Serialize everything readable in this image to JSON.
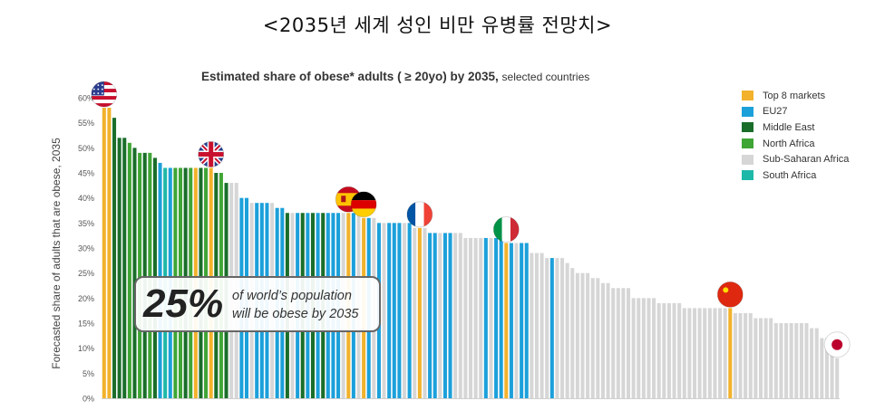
{
  "page_title": "<2035년 세계 성인 비만 유병률 전망치>",
  "colors": {
    "Top 8 markets": "#F2B22C",
    "EU27": "#1CA0DA",
    "Middle East": "#1A6E2A",
    "North Africa": "#3FA535",
    "Sub-Saharan Africa": "#D6D6D6",
    "South Africa": "#1DB8A8"
  },
  "callout": {
    "percent": "25%",
    "line1": "of world’s population",
    "line2": "will be obese by 2035"
  },
  "chart_data": {
    "type": "bar",
    "title": "Estimated share of obese* adults ( ≥ 20yo) by 2035,",
    "subtitle": "selected countries",
    "ylabel": "Forecasted share of adults that are obese, 2035",
    "xlabel": "",
    "ylim": [
      0,
      60
    ],
    "yticks": [
      "0%",
      "5%",
      "10%",
      "15%",
      "20%",
      "25%",
      "30%",
      "35%",
      "40%",
      "45%",
      "50%",
      "55%",
      "60%"
    ],
    "grid": false,
    "legend_position": "top-right",
    "legend": [
      "Top 8 markets",
      "EU27",
      "Middle East",
      "North Africa",
      "Sub-Saharan Africa",
      "South Africa"
    ],
    "flags": [
      {
        "country": "United States",
        "flag": "us-flag-icon",
        "bar_index": 0
      },
      {
        "country": "United Kingdom",
        "flag": "uk-flag-icon",
        "bar_index": 21
      },
      {
        "country": "Spain",
        "flag": "spain-flag-icon",
        "bar_index": 48
      },
      {
        "country": "Germany",
        "flag": "germany-flag-icon",
        "bar_index": 51
      },
      {
        "country": "France",
        "flag": "france-flag-icon",
        "bar_index": 62
      },
      {
        "country": "Italy",
        "flag": "italy-flag-icon",
        "bar_index": 79
      },
      {
        "country": "China",
        "flag": "china-flag-icon",
        "bar_index": 123
      },
      {
        "country": "Japan",
        "flag": "japan-flag-icon",
        "bar_index": 144
      }
    ],
    "values": [
      58,
      58,
      56,
      52,
      52,
      51,
      50,
      49,
      49,
      49,
      48,
      47,
      46,
      46,
      46,
      46,
      46,
      46,
      46,
      46,
      46,
      46,
      45,
      45,
      43,
      43,
      43,
      40,
      40,
      39,
      39,
      39,
      39,
      39,
      38,
      38,
      37,
      37,
      37,
      37,
      37,
      37,
      37,
      37,
      37,
      37,
      37,
      37,
      37,
      37,
      37,
      36,
      36,
      36,
      35,
      35,
      35,
      35,
      35,
      35,
      35,
      34,
      34,
      34,
      33,
      33,
      33,
      33,
      33,
      33,
      33,
      32,
      32,
      32,
      32,
      32,
      32,
      32,
      32,
      31,
      31,
      31,
      31,
      31,
      29,
      29,
      29,
      28,
      28,
      28,
      28,
      27,
      26,
      25,
      25,
      25,
      24,
      24,
      23,
      23,
      22,
      22,
      22,
      22,
      20,
      20,
      20,
      20,
      20,
      19,
      19,
      19,
      19,
      19,
      18,
      18,
      18,
      18,
      18,
      18,
      18,
      18,
      18,
      18,
      17,
      17,
      17,
      17,
      16,
      16,
      16,
      16,
      15,
      15,
      15,
      15,
      15,
      15,
      15,
      14,
      14,
      12,
      12,
      12,
      8
    ],
    "groups": [
      "Top 8 markets",
      "Top 8 markets",
      "Middle East",
      "Middle East",
      "Middle East",
      "North Africa",
      "Middle East",
      "North Africa",
      "Middle East",
      "North Africa",
      "Middle East",
      "EU27",
      "South Africa",
      "EU27",
      "North Africa",
      "North Africa",
      "Middle East",
      "North Africa",
      "Top 8 markets",
      "Middle East",
      "North Africa",
      "Top 8 markets",
      "Middle East",
      "North Africa",
      "Middle East",
      "Sub-Saharan Africa",
      "Sub-Saharan Africa",
      "EU27",
      "EU27",
      "Sub-Saharan Africa",
      "EU27",
      "EU27",
      "EU27",
      "Sub-Saharan Africa",
      "EU27",
      "EU27",
      "Middle East",
      "Sub-Saharan Africa",
      "EU27",
      "Middle East",
      "EU27",
      "Middle East",
      "EU27",
      "Middle East",
      "EU27",
      "EU27",
      "EU27",
      "Sub-Saharan Africa",
      "Top 8 markets",
      "EU27",
      "Sub-Saharan Africa",
      "Top 8 markets",
      "EU27",
      "Sub-Saharan Africa",
      "EU27",
      "Sub-Saharan Africa",
      "EU27",
      "EU27",
      "EU27",
      "Sub-Saharan Africa",
      "EU27",
      "Sub-Saharan Africa",
      "Top 8 markets",
      "Sub-Saharan Africa",
      "EU27",
      "EU27",
      "Sub-Saharan Africa",
      "EU27",
      "EU27",
      "Sub-Saharan Africa",
      "Sub-Saharan Africa",
      "Sub-Saharan Africa",
      "Sub-Saharan Africa",
      "Sub-Saharan Africa",
      "Sub-Saharan Africa",
      "EU27",
      "Sub-Saharan Africa",
      "EU27",
      "EU27",
      "Top 8 markets",
      "EU27",
      "Sub-Saharan Africa",
      "EU27",
      "EU27",
      "Sub-Saharan Africa",
      "Sub-Saharan Africa",
      "Sub-Saharan Africa",
      "Sub-Saharan Africa",
      "EU27",
      "Sub-Saharan Africa",
      "Sub-Saharan Africa",
      "Sub-Saharan Africa",
      "Sub-Saharan Africa",
      "Sub-Saharan Africa",
      "Sub-Saharan Africa",
      "Sub-Saharan Africa",
      "Sub-Saharan Africa",
      "Sub-Saharan Africa",
      "Sub-Saharan Africa",
      "Sub-Saharan Africa",
      "Sub-Saharan Africa",
      "Sub-Saharan Africa",
      "Sub-Saharan Africa",
      "Sub-Saharan Africa",
      "Sub-Saharan Africa",
      "Sub-Saharan Africa",
      "Sub-Saharan Africa",
      "Sub-Saharan Africa",
      "Sub-Saharan Africa",
      "Sub-Saharan Africa",
      "Sub-Saharan Africa",
      "Sub-Saharan Africa",
      "Sub-Saharan Africa",
      "Sub-Saharan Africa",
      "Sub-Saharan Africa",
      "Sub-Saharan Africa",
      "Sub-Saharan Africa",
      "Sub-Saharan Africa",
      "Sub-Saharan Africa",
      "Sub-Saharan Africa",
      "Sub-Saharan Africa",
      "Sub-Saharan Africa",
      "Sub-Saharan Africa",
      "Top 8 markets",
      "Sub-Saharan Africa",
      "Sub-Saharan Africa",
      "Sub-Saharan Africa",
      "Sub-Saharan Africa",
      "Sub-Saharan Africa",
      "Sub-Saharan Africa",
      "Sub-Saharan Africa",
      "Sub-Saharan Africa",
      "Sub-Saharan Africa",
      "Sub-Saharan Africa",
      "Sub-Saharan Africa",
      "Sub-Saharan Africa",
      "Sub-Saharan Africa",
      "Sub-Saharan Africa",
      "Sub-Saharan Africa",
      "Sub-Saharan Africa",
      "Sub-Saharan Africa",
      "Sub-Saharan Africa",
      "Sub-Saharan Africa",
      "Sub-Saharan Africa",
      "Sub-Saharan Africa",
      "Top 8 markets"
    ]
  }
}
